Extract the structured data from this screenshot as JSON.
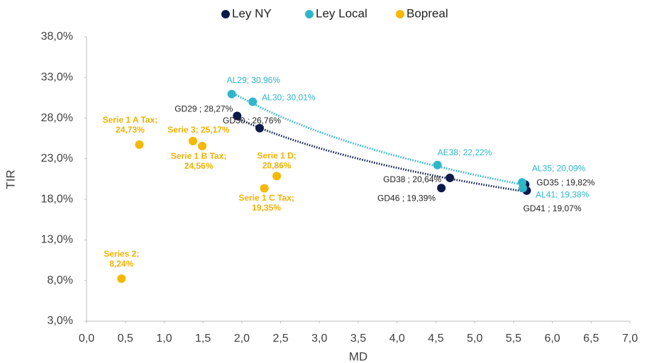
{
  "chart_data": {
    "type": "scatter",
    "xlabel": "MD",
    "ylabel": "TIR",
    "xlim": [
      0,
      7
    ],
    "ylim": [
      3,
      38
    ],
    "xticks": [
      {
        "value": 0,
        "label": "0,0"
      },
      {
        "value": 0.5,
        "label": "0,5"
      },
      {
        "value": 1,
        "label": "1,0"
      },
      {
        "value": 1.5,
        "label": "1,5"
      },
      {
        "value": 2,
        "label": "2,0"
      },
      {
        "value": 2.5,
        "label": "2,5"
      },
      {
        "value": 3,
        "label": "3,0"
      },
      {
        "value": 3.5,
        "label": "3,5"
      },
      {
        "value": 4,
        "label": "4,0"
      },
      {
        "value": 4.5,
        "label": "4,5"
      },
      {
        "value": 5,
        "label": "5,0"
      },
      {
        "value": 5.5,
        "label": "5,5"
      },
      {
        "value": 6,
        "label": "6,0"
      },
      {
        "value": 6.5,
        "label": "6,5"
      },
      {
        "value": 7,
        "label": "7,0"
      }
    ],
    "yticks": [
      {
        "value": 3,
        "label": "3,0%"
      },
      {
        "value": 8,
        "label": "8,0%"
      },
      {
        "value": 13,
        "label": "13,0%"
      },
      {
        "value": 18,
        "label": "18,0%"
      },
      {
        "value": 23,
        "label": "23,0%"
      },
      {
        "value": 28,
        "label": "28,0%"
      },
      {
        "value": 33,
        "label": "33,0%"
      },
      {
        "value": 38,
        "label": "38,0%"
      }
    ],
    "grid": false,
    "legend": "top",
    "series": [
      {
        "name": "Ley NY",
        "color": "#0c1a4a",
        "trendline": true,
        "x": [
          1.94,
          2.23,
          4.68,
          4.57,
          5.65,
          5.67
        ],
        "values": [
          28.27,
          26.76,
          20.64,
          19.39,
          19.82,
          19.07
        ],
        "value_labels": [
          "GD29 ; 28,27%",
          "GD30 ; 26,76%",
          "GD38 ; 20,64%",
          "GD46 ; 19,39%",
          "GD35 ; 19,82%",
          "GD41 ; 19,07%"
        ]
      },
      {
        "name": "Ley Local",
        "color": "#2fb6c8",
        "trendline": true,
        "x": [
          1.87,
          2.14,
          4.52,
          5.61,
          5.62
        ],
        "values": [
          30.96,
          30.01,
          22.22,
          20.09,
          19.38
        ],
        "value_labels": [
          "AL29; 30,96%",
          "AL30; 30,01%",
          "AE38; 22,22%",
          "AL35; 20,09%",
          "AL41; 19,38%"
        ]
      },
      {
        "name": "Bopreal",
        "color": "#f6b800",
        "trendline": false,
        "x": [
          0.68,
          1.37,
          1.49,
          2.45,
          2.29,
          0.45
        ],
        "values": [
          24.73,
          25.17,
          24.56,
          20.86,
          19.35,
          8.24
        ],
        "value_labels": [
          [
            "Serie 1 A Tax;",
            "24,73%"
          ],
          [
            "Serie 3; 25,17%"
          ],
          [
            "Serie 1 B Tax;",
            "24,56%"
          ],
          [
            "Serie 1 D;",
            "20,86%"
          ],
          [
            "Serie 1 C Tax;",
            "19,35%"
          ],
          [
            "Series 2;",
            "8,24%"
          ]
        ]
      }
    ]
  }
}
